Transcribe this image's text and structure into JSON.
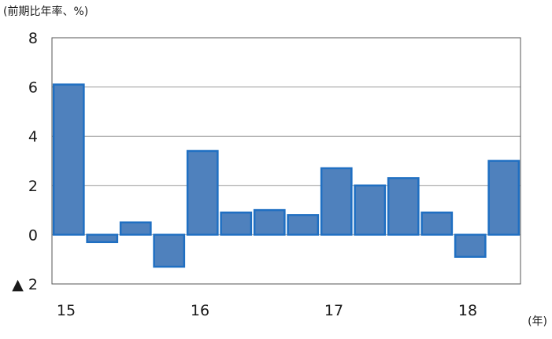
{
  "chart_data": {
    "type": "bar",
    "ylabel": "(前期比年率、%)",
    "xunit": "(年)",
    "ylim": [
      -2,
      8
    ],
    "y_ticks": [
      {
        "value": 8,
        "label": "8"
      },
      {
        "value": 6,
        "label": "6"
      },
      {
        "value": 4,
        "label": "4"
      },
      {
        "value": 2,
        "label": "2"
      },
      {
        "value": 0,
        "label": "0"
      },
      {
        "value": -2,
        "label": "▲ 2"
      }
    ],
    "x_year_labels": [
      {
        "label": "15",
        "index": 0
      },
      {
        "label": "16",
        "index": 4
      },
      {
        "label": "17",
        "index": 8
      },
      {
        "label": "18",
        "index": 12
      }
    ],
    "values": [
      6.1,
      -0.3,
      0.5,
      -1.3,
      3.4,
      0.9,
      1.0,
      0.8,
      2.7,
      2.0,
      2.3,
      0.9,
      -0.9,
      3.0
    ],
    "grid": true,
    "colors": {
      "bar_fill": "#4f81bd",
      "bar_stroke": "#1f6fc2",
      "grid": "#9a9a9a",
      "axis": "#555555"
    }
  }
}
